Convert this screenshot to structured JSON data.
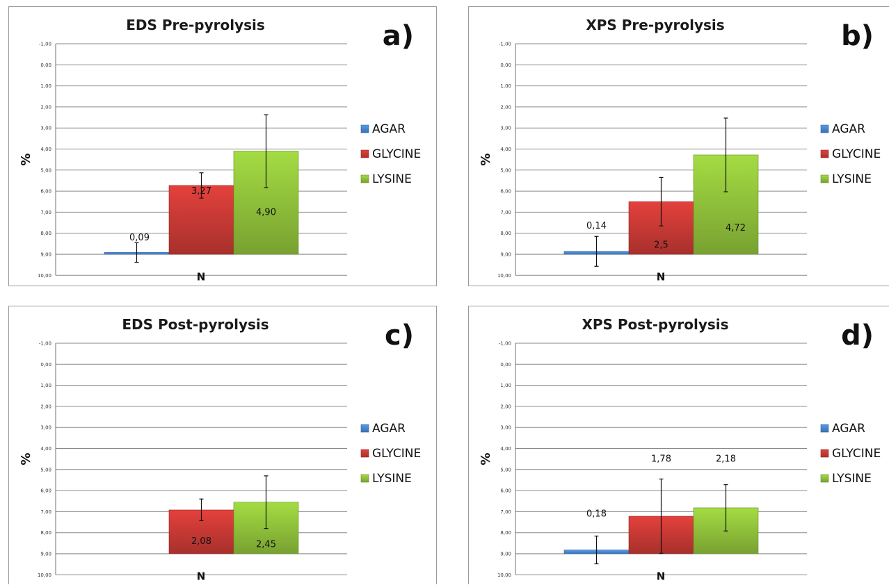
{
  "colors": {
    "AGAR": "#4a8ad6",
    "GLYCINE": "#cc3a36",
    "LYSINE": "#92c43c"
  },
  "chart_data": [
    {
      "type": "bar",
      "title": "EDS Pre-pyrolysis",
      "panel_label": "a)",
      "ylabel": "%",
      "categories": [
        "N"
      ],
      "ylim": [
        -1,
        10
      ],
      "yticks": [
        "-1,00",
        "0,00",
        "1,00",
        "2,00",
        "3,00",
        "4,00",
        "5,00",
        "6,00",
        "7,00",
        "8,00",
        "9,00",
        "10,00"
      ],
      "legend": "right",
      "grid": true,
      "series": [
        {
          "name": "AGAR",
          "values": [
            0.09
          ],
          "label": "0,09",
          "error_low": -0.38,
          "error_high": 0.55
        },
        {
          "name": "GLYCINE",
          "values": [
            3.27
          ],
          "label": "3,27",
          "error_low": 2.67,
          "error_high": 3.87
        },
        {
          "name": "LYSINE",
          "values": [
            4.9
          ],
          "label": "4,90",
          "error_low": 3.17,
          "error_high": 6.63
        }
      ]
    },
    {
      "type": "bar",
      "title": "XPS Pre-pyrolysis",
      "panel_label": "b)",
      "ylabel": "%",
      "categories": [
        "N"
      ],
      "ylim": [
        -1,
        10
      ],
      "yticks": [
        "-1,00",
        "0,00",
        "1,00",
        "2,00",
        "3,00",
        "4,00",
        "5,00",
        "6,00",
        "7,00",
        "8,00",
        "9,00",
        "10,00"
      ],
      "legend": "right",
      "grid": true,
      "series": [
        {
          "name": "AGAR",
          "values": [
            0.14
          ],
          "label": "0,14",
          "error_low": -0.57,
          "error_high": 0.85
        },
        {
          "name": "GLYCINE",
          "values": [
            2.5
          ],
          "label": "2,5",
          "error_low": 1.35,
          "error_high": 3.65
        },
        {
          "name": "LYSINE",
          "values": [
            4.72
          ],
          "label": "4,72",
          "error_low": 2.97,
          "error_high": 6.47
        }
      ]
    },
    {
      "type": "bar",
      "title": "EDS Post-pyrolysis",
      "panel_label": "c)",
      "ylabel": "%",
      "categories": [
        "N"
      ],
      "ylim": [
        -1,
        10
      ],
      "yticks": [
        "-1,00",
        "0,00",
        "1,00",
        "2,00",
        "3,00",
        "4,00",
        "5,00",
        "6,00",
        "7,00",
        "8,00",
        "9,00",
        "10,00"
      ],
      "legend": "right",
      "grid": true,
      "series": [
        {
          "name": "AGAR",
          "values": [
            0
          ],
          "label": ""
        },
        {
          "name": "GLYCINE",
          "values": [
            2.08
          ],
          "label": "2,08",
          "error_low": 1.57,
          "error_high": 2.6
        },
        {
          "name": "LYSINE",
          "values": [
            2.45
          ],
          "label": "2,45",
          "error_low": 1.2,
          "error_high": 3.7
        }
      ]
    },
    {
      "type": "bar",
      "title": "XPS Post-pyrolysis",
      "panel_label": "d)",
      "ylabel": "%",
      "categories": [
        "N"
      ],
      "ylim": [
        -1,
        10
      ],
      "yticks": [
        "-1,00",
        "0,00",
        "1,00",
        "2,00",
        "3,00",
        "4,00",
        "5,00",
        "6,00",
        "7,00",
        "8,00",
        "9,00",
        "10,00"
      ],
      "legend": "right",
      "grid": true,
      "series": [
        {
          "name": "AGAR",
          "values": [
            0.18
          ],
          "label": "0,18",
          "error_low": -0.48,
          "error_high": 0.84
        },
        {
          "name": "GLYCINE",
          "values": [
            1.78
          ],
          "label": "1,78",
          "error_low": 0.02,
          "error_high": 3.55
        },
        {
          "name": "LYSINE",
          "values": [
            2.18
          ],
          "label": "2,18",
          "error_low": 1.08,
          "error_high": 3.28
        }
      ]
    }
  ]
}
